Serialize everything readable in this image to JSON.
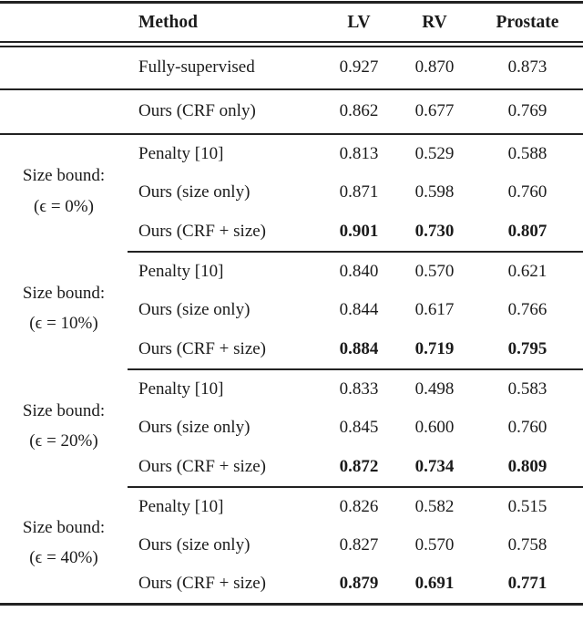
{
  "colors": {
    "text": "#1b1b1b",
    "rule": "#222222",
    "background": "#ffffff"
  },
  "table": {
    "headers": {
      "method": "Method",
      "lv": "LV",
      "rv": "RV",
      "prostate": "Prostate"
    },
    "groups": [
      {
        "label_line1": "",
        "label_line2": "",
        "rows": [
          {
            "method": "Fully-supervised",
            "values": [
              "0.927",
              "0.870",
              "0.873"
            ]
          }
        ]
      },
      {
        "label_line1": "",
        "label_line2": "",
        "rows": [
          {
            "method": "Ours (CRF only)",
            "values": [
              "0.862",
              "0.677",
              "0.769"
            ]
          }
        ]
      },
      {
        "label_line1": "Size bound:",
        "label_line2": "(ϵ = 0%)",
        "rows": [
          {
            "method": "Penalty [10]",
            "values": [
              "0.813",
              "0.529",
              "0.588"
            ]
          },
          {
            "method": "Ours (size only)",
            "values": [
              "0.871",
              "0.598",
              "0.760"
            ]
          },
          {
            "method": "Ours (CRF + size)",
            "values": [
              "0.901",
              "0.730",
              "0.807"
            ]
          }
        ]
      },
      {
        "label_line1": "Size bound:",
        "label_line2": "(ϵ = 10%)",
        "rows": [
          {
            "method": "Penalty [10]",
            "values": [
              "0.840",
              "0.570",
              "0.621"
            ]
          },
          {
            "method": "Ours (size only)",
            "values": [
              "0.844",
              "0.617",
              "0.766"
            ]
          },
          {
            "method": "Ours (CRF + size)",
            "values": [
              "0.884",
              "0.719",
              "0.795"
            ]
          }
        ]
      },
      {
        "label_line1": "Size bound:",
        "label_line2": "(ϵ = 20%)",
        "rows": [
          {
            "method": "Penalty [10]",
            "values": [
              "0.833",
              "0.498",
              "0.583"
            ]
          },
          {
            "method": "Ours (size only)",
            "values": [
              "0.845",
              "0.600",
              "0.760"
            ]
          },
          {
            "method": "Ours (CRF + size)",
            "values": [
              "0.872",
              "0.734",
              "0.809"
            ]
          }
        ]
      },
      {
        "label_line1": "Size bound:",
        "label_line2": "(ϵ = 40%)",
        "rows": [
          {
            "method": "Penalty [10]",
            "values": [
              "0.826",
              "0.582",
              "0.515"
            ]
          },
          {
            "method": "Ours (size only)",
            "values": [
              "0.827",
              "0.570",
              "0.758"
            ]
          },
          {
            "method": "Ours (CRF + size)",
            "values": [
              "0.879",
              "0.691",
              "0.771"
            ]
          }
        ]
      }
    ]
  }
}
